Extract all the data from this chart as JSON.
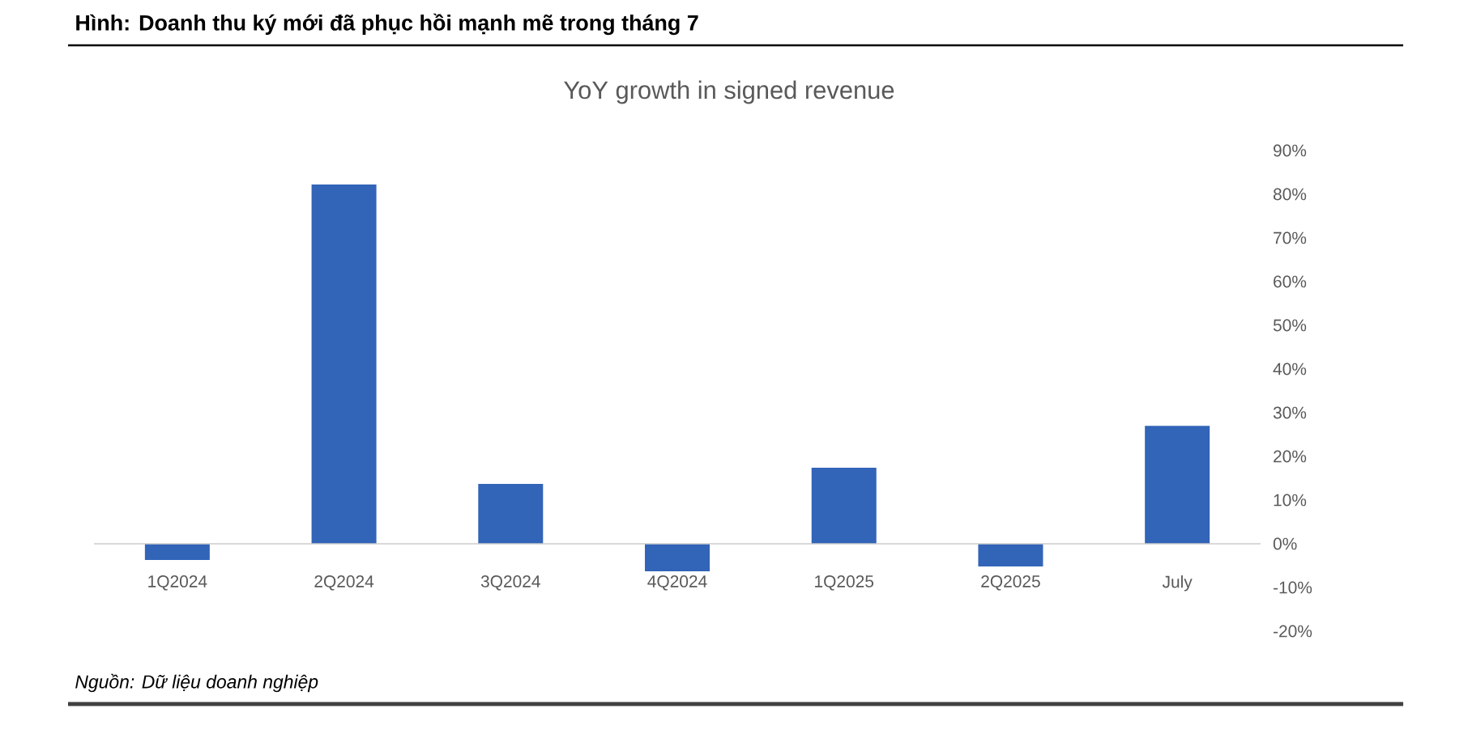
{
  "chart_data": {
    "type": "bar",
    "title": "Hình: Doanh thu ký mới đã phục hồi mạnh mẽ trong tháng 7",
    "subtitle": "YoY growth in signed revenue",
    "categories": [
      "1Q2024",
      "2Q2024",
      "3Q2024",
      "4Q2024",
      "1Q2025",
      "2Q2025",
      "July"
    ],
    "values": [
      -3.7,
      82.2,
      13.7,
      -6.3,
      17.4,
      -5.2,
      27
    ],
    "color": "#3264b8",
    "ylim": [
      -20,
      90
    ],
    "yticks": [
      {
        "value": -20,
        "label": "-20%"
      },
      {
        "value": -10,
        "label": "-10%"
      },
      {
        "value": 0,
        "label": "0%"
      },
      {
        "value": 10,
        "label": "10%"
      },
      {
        "value": 20,
        "label": "20%"
      },
      {
        "value": 30,
        "label": "30%"
      },
      {
        "value": 40,
        "label": "40%"
      },
      {
        "value": 50,
        "label": "50%"
      },
      {
        "value": 60,
        "label": "60%"
      },
      {
        "value": 70,
        "label": "70%"
      },
      {
        "value": 80,
        "label": "80%"
      },
      {
        "value": 90,
        "label": "90%"
      }
    ],
    "annotations": [
      "*Nguồn: Dữ liệu doanh nghiệp*"
    ]
  }
}
